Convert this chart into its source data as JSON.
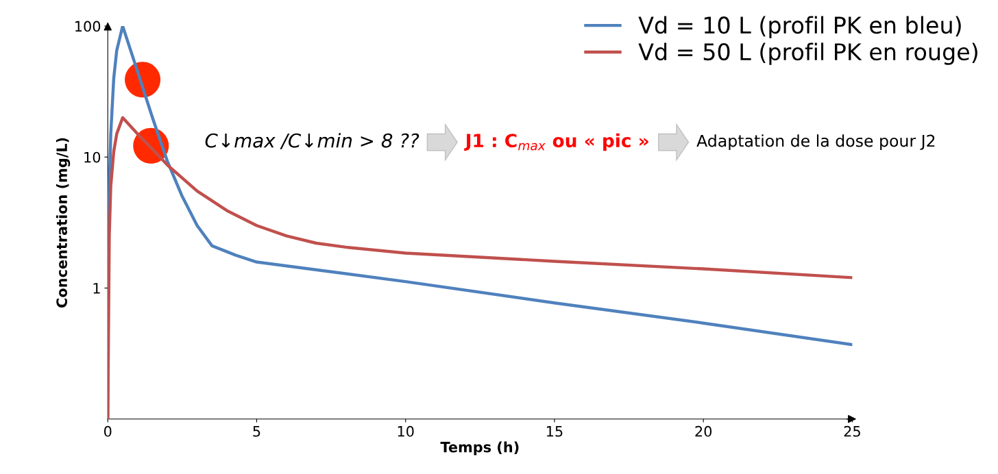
{
  "chart_data": {
    "type": "line",
    "xlabel": "Temps (h)",
    "ylabel": "Concentration (mg/L)",
    "log": "y",
    "xlim": [
      0,
      25
    ],
    "xticks": [
      0,
      5,
      10,
      15,
      20,
      25
    ],
    "ylim": [
      0.1,
      100
    ],
    "yticks": [
      1,
      10,
      100
    ],
    "grid": false,
    "legend": "top right",
    "marker": "none",
    "line_style": "solid",
    "series": [
      {
        "name": "Vd = 10 L (profil PK en bleu)",
        "color": "#4f81bd",
        "x": [
          0,
          0.02,
          0.1,
          0.2,
          0.3,
          0.5,
          1,
          1.5,
          2,
          2.5,
          3,
          3.5,
          4.3,
          5,
          7.5,
          10,
          15,
          20,
          25
        ],
        "values": [
          0.1,
          3,
          15,
          40,
          65,
          100,
          45,
          20,
          9.3,
          5,
          3.0,
          2.1,
          1.78,
          1.58,
          1.33,
          1.12,
          0.77,
          0.54,
          0.37
        ]
      },
      {
        "name": "Vd = 50 L (profil PK en rouge)",
        "color": "#c0504d",
        "x": [
          0,
          0.05,
          0.1,
          0.2,
          0.3,
          0.5,
          1,
          1.5,
          2,
          3,
          4,
          5,
          6,
          7,
          8,
          10,
          15,
          20,
          25
        ],
        "values": [
          0.1,
          2.5,
          6,
          11,
          15,
          20,
          15,
          11.5,
          8.7,
          5.5,
          3.9,
          3.0,
          2.5,
          2.2,
          2.05,
          1.85,
          1.6,
          1.4,
          1.2
        ]
      },
      {
        "type": "scatter",
        "color": "#ff2a00",
        "marker": "circle",
        "x": [
          1.17,
          1.45
        ],
        "values": [
          39,
          12.2
        ]
      }
    ],
    "annotations": [
      "C↓max /C↓min > 8 ??",
      "J1 : C$_{max}$ ou « pic »",
      "Adaptation de la dose pour J2"
    ]
  }
}
